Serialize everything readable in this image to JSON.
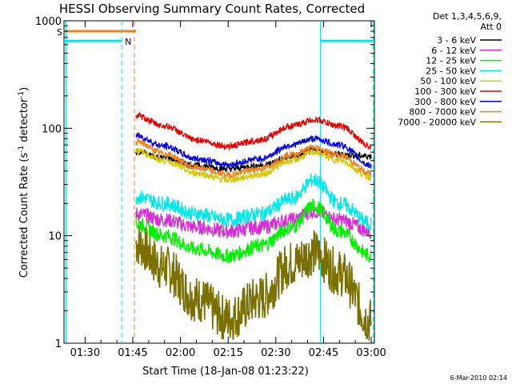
{
  "chart_data": {
    "type": "line",
    "title": "HESSI Observing Summary Count Rates, Corrected",
    "xlabel": "Start Time (18-Jan-08 01:23:22)",
    "ylabel_main": "Corrected Count Rate (s",
    "ylabel_sup1": "-1",
    "ylabel_mid": " detector",
    "ylabel_sup2": "-1",
    "ylabel_end": ")",
    "yscale": "log",
    "ylim": [
      1,
      1000
    ],
    "xlim": [
      "01:23:22",
      "03:01:00"
    ],
    "x_ticks": [
      "01:30",
      "01:45",
      "02:00",
      "02:15",
      "02:30",
      "02:45",
      "03:00"
    ],
    "y_ticks": [
      "1",
      "10",
      "100",
      "1000"
    ],
    "legend_header_1": "Det 1,3,4,5,6,9,",
    "legend_header_2": "Att 0",
    "series": [
      {
        "name": "3 - 6 keV",
        "color": "#000000",
        "points": [
          [
            "01:46",
            60
          ],
          [
            "01:55",
            53
          ],
          [
            "02:05",
            45
          ],
          [
            "02:15",
            42
          ],
          [
            "02:25",
            45
          ],
          [
            "02:35",
            54
          ],
          [
            "02:42",
            62
          ],
          [
            "02:50",
            57
          ],
          [
            "03:00",
            55
          ]
        ]
      },
      {
        "name": "6 - 12 keV",
        "color": "#d82cd8",
        "points": [
          [
            "01:46",
            16
          ],
          [
            "01:55",
            14
          ],
          [
            "02:05",
            12
          ],
          [
            "02:15",
            11
          ],
          [
            "02:25",
            12
          ],
          [
            "02:35",
            14
          ],
          [
            "02:42",
            17
          ],
          [
            "02:50",
            14
          ],
          [
            "03:00",
            11
          ]
        ]
      },
      {
        "name": "12 - 25 keV",
        "color": "#00f000",
        "points": [
          [
            "01:46",
            13
          ],
          [
            "01:55",
            10
          ],
          [
            "02:05",
            7.5
          ],
          [
            "02:15",
            6.5
          ],
          [
            "02:25",
            8
          ],
          [
            "02:35",
            12
          ],
          [
            "02:42",
            19
          ],
          [
            "02:50",
            11
          ],
          [
            "03:00",
            6.5
          ]
        ]
      },
      {
        "name": "25 - 50 keV",
        "color": "#00e8e8",
        "points": [
          [
            "01:46",
            23
          ],
          [
            "01:55",
            20
          ],
          [
            "02:05",
            16
          ],
          [
            "02:15",
            14
          ],
          [
            "02:25",
            16
          ],
          [
            "02:35",
            22
          ],
          [
            "02:42",
            33
          ],
          [
            "02:50",
            20
          ],
          [
            "03:00",
            13
          ]
        ]
      },
      {
        "name": "50 - 100 keV",
        "color": "#d8c800",
        "points": [
          [
            "01:46",
            62
          ],
          [
            "01:55",
            50
          ],
          [
            "02:05",
            38
          ],
          [
            "02:15",
            33
          ],
          [
            "02:25",
            37
          ],
          [
            "02:35",
            50
          ],
          [
            "02:42",
            60
          ],
          [
            "02:50",
            50
          ],
          [
            "03:00",
            35
          ]
        ]
      },
      {
        "name": "100 - 300 keV",
        "color": "#e80000",
        "points": [
          [
            "01:46",
            130
          ],
          [
            "01:55",
            105
          ],
          [
            "02:05",
            78
          ],
          [
            "02:15",
            68
          ],
          [
            "02:25",
            78
          ],
          [
            "02:35",
            105
          ],
          [
            "02:42",
            120
          ],
          [
            "02:50",
            105
          ],
          [
            "03:00",
            68
          ]
        ]
      },
      {
        "name": "300 - 800 keV",
        "color": "#0000e8",
        "points": [
          [
            "01:46",
            85
          ],
          [
            "01:55",
            68
          ],
          [
            "02:05",
            52
          ],
          [
            "02:15",
            46
          ],
          [
            "02:25",
            52
          ],
          [
            "02:35",
            70
          ],
          [
            "02:42",
            80
          ],
          [
            "02:50",
            70
          ],
          [
            "03:00",
            45
          ]
        ]
      },
      {
        "name": "800 - 7000 keV",
        "color": "#f08018",
        "points": [
          [
            "01:46",
            75
          ],
          [
            "01:55",
            58
          ],
          [
            "02:05",
            43
          ],
          [
            "02:15",
            37
          ],
          [
            "02:25",
            42
          ],
          [
            "02:35",
            57
          ],
          [
            "02:42",
            66
          ],
          [
            "02:50",
            56
          ],
          [
            "03:00",
            38
          ]
        ]
      },
      {
        "name": "7000 - 20000 keV",
        "color": "#7a7000",
        "points": [
          [
            "01:46",
            8.5
          ],
          [
            "01:55",
            5
          ],
          [
            "02:05",
            2.6
          ],
          [
            "02:15",
            1.7
          ],
          [
            "02:25",
            2.6
          ],
          [
            "02:35",
            5.5
          ],
          [
            "02:42",
            7
          ],
          [
            "02:50",
            4.5
          ],
          [
            "03:00",
            1.6
          ]
        ]
      }
    ],
    "flags": [
      {
        "label": "S",
        "color": "#f08018",
        "value": 800,
        "start": "01:23:22",
        "end": "01:46:00"
      },
      {
        "label": "N",
        "color": "#00e8e8",
        "value": 650,
        "start": "01:23:22",
        "end": "01:41:30"
      },
      {
        "label": "",
        "color": "#00e8e8",
        "value": 650,
        "start": "02:44:00",
        "end": "03:00:40"
      }
    ],
    "vlines": [
      {
        "time": "01:24:00",
        "color": "#00e8e8",
        "style": "solid"
      },
      {
        "time": "01:41:30",
        "color": "#00e8e8",
        "style": "dashed"
      },
      {
        "time": "01:45:30",
        "color": "#f08018",
        "style": "dashed"
      },
      {
        "time": "02:44:00",
        "color": "#00e8e8",
        "style": "solid"
      },
      {
        "time": "03:00:40",
        "color": "#00e8e8",
        "style": "dashed"
      }
    ],
    "grid": false
  },
  "footer_date": "6-Mar-2010 02:14"
}
